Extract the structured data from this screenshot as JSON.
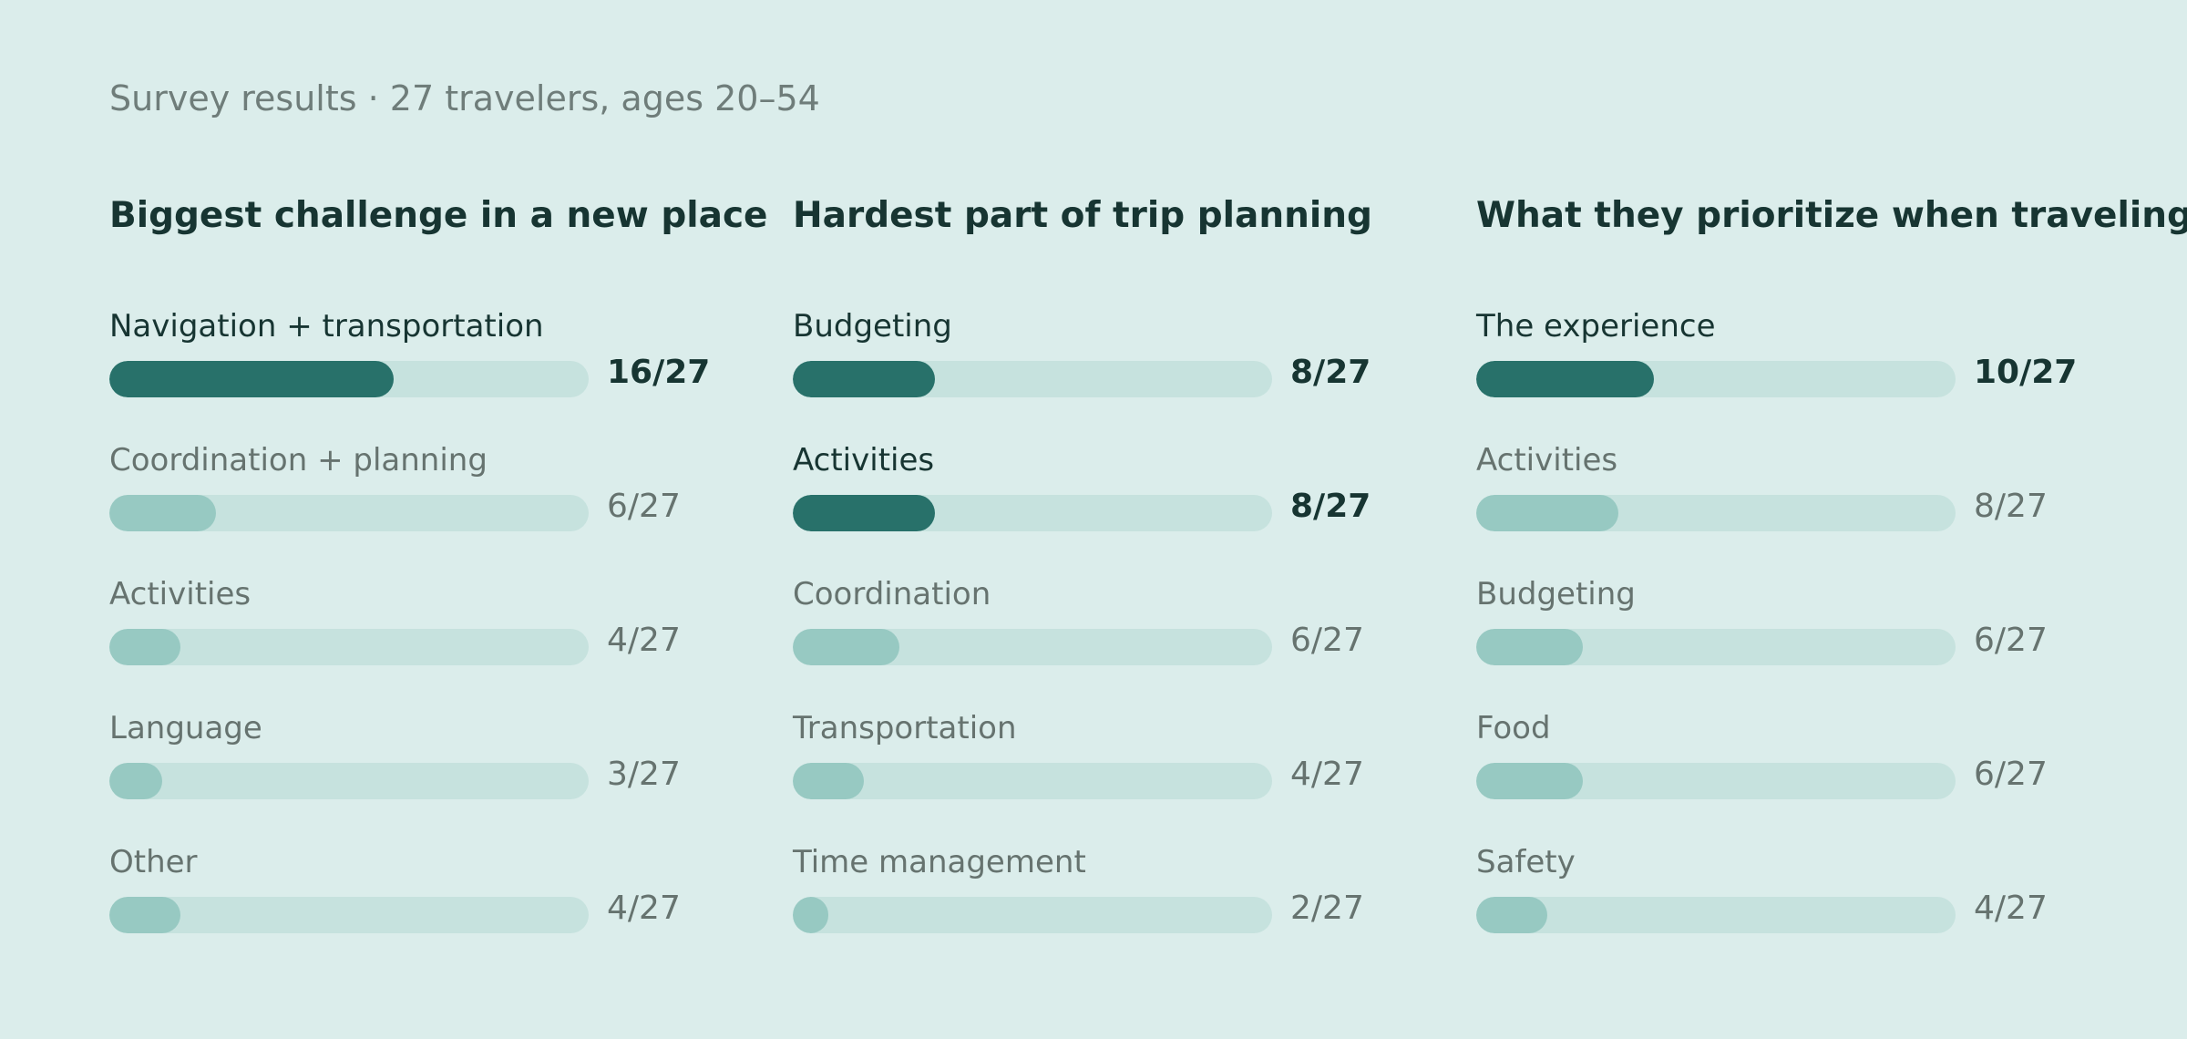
{
  "subtitle": "Survey results · 27 travelers, ages 20–54",
  "colors": {
    "background": "#dbedeb",
    "track": "#c6e2de",
    "fill_top": "#28716a",
    "fill_other": "#97c9c2"
  },
  "chart_data": [
    {
      "type": "bar",
      "orientation": "horizontal",
      "title": "Biggest challenge in a new place",
      "total": 27,
      "categories": [
        "Navigation + transportation",
        "Coordination + planning",
        "Activities",
        "Language",
        "Other"
      ],
      "values": [
        16,
        6,
        4,
        3,
        4
      ],
      "value_labels": [
        "16/27",
        "6/27",
        "4/27",
        "3/27",
        "4/27"
      ],
      "highlighted": [
        true,
        false,
        false,
        false,
        false
      ]
    },
    {
      "type": "bar",
      "orientation": "horizontal",
      "title": "Hardest part of trip planning",
      "total": 27,
      "categories": [
        "Budgeting",
        "Activities",
        "Coordination",
        "Transportation",
        "Time management"
      ],
      "values": [
        8,
        8,
        6,
        4,
        2
      ],
      "value_labels": [
        "8/27",
        "8/27",
        "6/27",
        "4/27",
        "2/27"
      ],
      "highlighted": [
        true,
        true,
        false,
        false,
        false
      ]
    },
    {
      "type": "bar",
      "orientation": "horizontal",
      "title": "What they prioritize when traveling",
      "total": 27,
      "categories": [
        "The experience",
        "Activities",
        "Budgeting",
        "Food",
        "Safety"
      ],
      "values": [
        10,
        8,
        6,
        6,
        4
      ],
      "value_labels": [
        "10/27",
        "8/27",
        "6/27",
        "6/27",
        "4/27"
      ],
      "highlighted": [
        true,
        false,
        false,
        false,
        false
      ]
    }
  ]
}
